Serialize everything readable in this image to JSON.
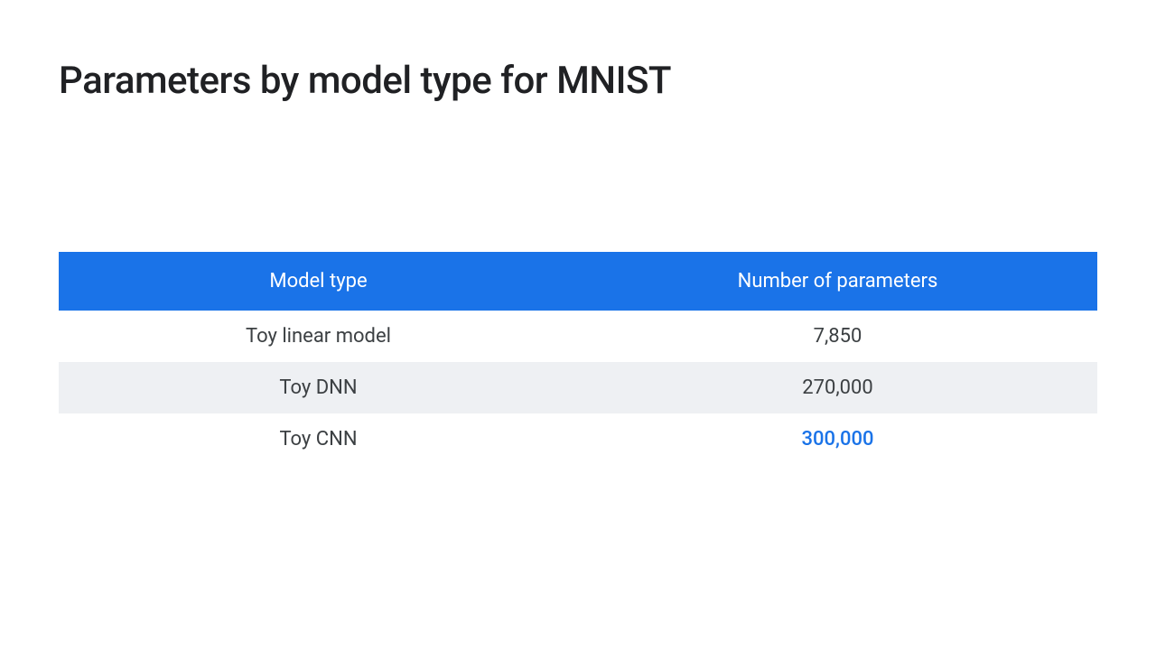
{
  "slide": {
    "title": "Parameters by model type for MNIST",
    "background_color": "#ffffff",
    "title_color": "#202124",
    "title_fontsize": 42
  },
  "table": {
    "type": "table",
    "header_background": "#1a73e8",
    "header_text_color": "#ffffff",
    "header_fontsize": 22,
    "row_background": "#ffffff",
    "row_striped_background": "#eef0f3",
    "cell_text_color": "#3c4043",
    "cell_fontsize": 22,
    "highlight_color": "#1a73e8",
    "columns": [
      {
        "label": "Model type",
        "width": "50%",
        "align": "center"
      },
      {
        "label": "Number of parameters",
        "width": "50%",
        "align": "center"
      }
    ],
    "rows": [
      {
        "model": "Toy linear model",
        "params": "7,850",
        "striped": false,
        "highlighted": false
      },
      {
        "model": "Toy DNN",
        "params": "270,000",
        "striped": true,
        "highlighted": false
      },
      {
        "model": "Toy CNN",
        "params": "300,000",
        "striped": false,
        "highlighted": true
      }
    ]
  }
}
